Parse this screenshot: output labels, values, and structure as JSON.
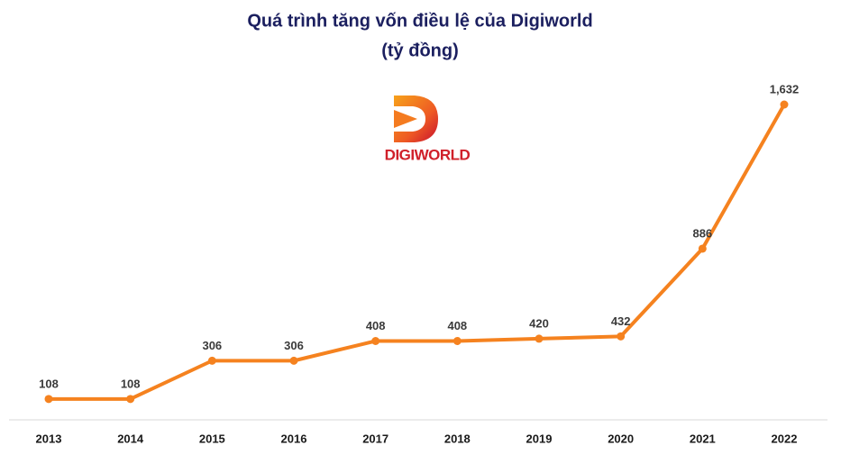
{
  "chart_data": {
    "type": "line",
    "title": "Quá trình tăng vốn điều lệ của Digiworld",
    "subtitle": "(tỷ đồng)",
    "logo": "DIGIWORLD",
    "categories": [
      "2013",
      "2014",
      "2015",
      "2016",
      "2017",
      "2018",
      "2019",
      "2020",
      "2021",
      "2022"
    ],
    "values": [
      108,
      108,
      306,
      306,
      408,
      408,
      420,
      432,
      886,
      1632
    ],
    "value_labels": [
      "108",
      "108",
      "306",
      "306",
      "408",
      "408",
      "420",
      "432",
      "886",
      "1,632"
    ],
    "color": "#f5821f"
  }
}
